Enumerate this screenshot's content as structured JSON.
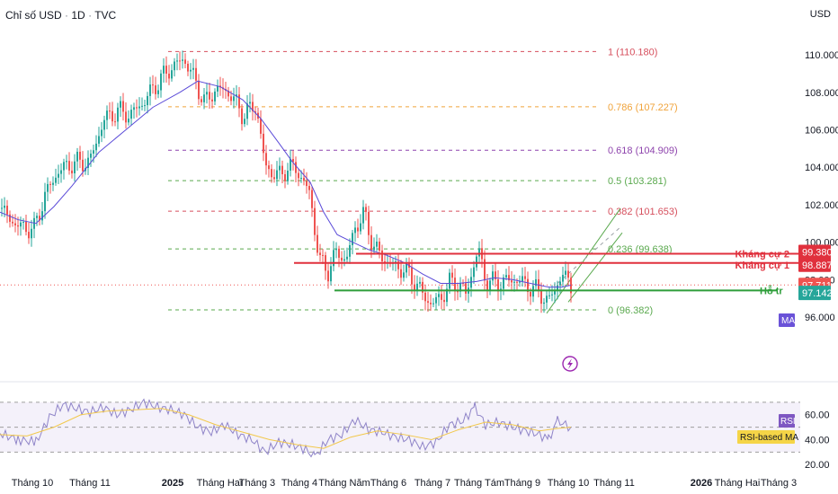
{
  "header": {
    "symbol": "Chỉ số USD",
    "interval": "1D",
    "source": "TVC",
    "currency": "USD"
  },
  "colors": {
    "up": "#26a69a",
    "down": "#ef5350",
    "ma": "#5b4bd8",
    "resistance": "#e0303d",
    "support": "#2e9e3a",
    "rsi": "#8f84c8",
    "rsi_ma": "#f2c84b"
  },
  "chart_data": {
    "type": "candlestick",
    "price_axis": {
      "range": [
        94.8,
        111.3
      ],
      "ticks": [
        "110.000",
        "108.000",
        "106.000",
        "104.000",
        "102.000",
        "100.000",
        "98.000",
        "96.000"
      ],
      "tick_values": [
        110,
        108,
        106,
        104,
        102,
        100,
        98,
        96
      ]
    },
    "time_axis": {
      "labels": [
        "Tháng 10",
        "Tháng 11",
        "2025",
        "Tháng Hai",
        "Tháng 3",
        "Tháng 4",
        "Tháng Năm",
        "Tháng 6",
        "Tháng 7",
        "Tháng Tám",
        "Tháng 9",
        "Tháng 10",
        "Tháng 11",
        "2026",
        "Tháng Hai",
        "Tháng 3"
      ],
      "bold": [
        false,
        false,
        true,
        false,
        false,
        false,
        false,
        false,
        false,
        false,
        false,
        false,
        false,
        true,
        false,
        false
      ]
    },
    "price_path": [
      [
        0,
        101.8
      ],
      [
        12,
        101.2
      ],
      [
        22,
        100.8
      ],
      [
        38,
        100.7
      ],
      [
        50,
        102.5
      ],
      [
        65,
        103.8
      ],
      [
        80,
        104.2
      ],
      [
        100,
        104.3
      ],
      [
        115,
        106.5
      ],
      [
        130,
        107.0
      ],
      [
        145,
        106.8
      ],
      [
        160,
        107.5
      ],
      [
        175,
        108.5
      ],
      [
        190,
        109.3
      ],
      [
        205,
        109.8
      ],
      [
        218,
        108.5
      ],
      [
        228,
        107.4
      ],
      [
        240,
        108.2
      ],
      [
        255,
        108.0
      ],
      [
        270,
        106.8
      ],
      [
        285,
        107.3
      ],
      [
        295,
        104.0
      ],
      [
        310,
        103.5
      ],
      [
        320,
        104.0
      ],
      [
        330,
        103.9
      ],
      [
        340,
        103.0
      ],
      [
        345,
        102.5
      ],
      [
        355,
        99.0
      ],
      [
        365,
        98.5
      ],
      [
        375,
        99.5
      ],
      [
        385,
        99.0
      ],
      [
        395,
        100.8
      ],
      [
        405,
        101.5
      ],
      [
        415,
        99.8
      ],
      [
        425,
        99.2
      ],
      [
        435,
        98.8
      ],
      [
        450,
        98.5
      ],
      [
        460,
        98.0
      ],
      [
        470,
        97.2
      ],
      [
        480,
        96.7
      ],
      [
        490,
        97.0
      ],
      [
        500,
        97.8
      ],
      [
        510,
        97.8
      ],
      [
        518,
        97.2
      ],
      [
        526,
        98.6
      ],
      [
        532,
        99.6
      ],
      [
        540,
        98.0
      ],
      [
        550,
        97.8
      ],
      [
        560,
        97.9
      ],
      [
        575,
        98.0
      ],
      [
        590,
        97.6
      ],
      [
        600,
        97.3
      ],
      [
        610,
        96.8
      ],
      [
        618,
        97.6
      ],
      [
        625,
        98.3
      ],
      [
        635,
        97.7
      ]
    ],
    "ma_path": [
      [
        0,
        101.6
      ],
      [
        20,
        101.2
      ],
      [
        40,
        101.0
      ],
      [
        60,
        101.9
      ],
      [
        80,
        103.0
      ],
      [
        110,
        104.8
      ],
      [
        140,
        106.0
      ],
      [
        170,
        107.2
      ],
      [
        200,
        108.0
      ],
      [
        220,
        108.6
      ],
      [
        245,
        108.3
      ],
      [
        270,
        107.6
      ],
      [
        290,
        106.6
      ],
      [
        310,
        105.3
      ],
      [
        325,
        104.3
      ],
      [
        345,
        103.2
      ],
      [
        360,
        101.6
      ],
      [
        375,
        100.4
      ],
      [
        392,
        100.0
      ],
      [
        410,
        99.6
      ],
      [
        430,
        99.3
      ],
      [
        450,
        98.9
      ],
      [
        470,
        98.3
      ],
      [
        490,
        97.8
      ],
      [
        510,
        97.8
      ],
      [
        530,
        97.9
      ],
      [
        550,
        98.1
      ],
      [
        570,
        98.0
      ],
      [
        590,
        97.8
      ],
      [
        610,
        97.6
      ],
      [
        625,
        97.6
      ],
      [
        635,
        97.7
      ]
    ],
    "fibonacci": [
      {
        "ratio": "1",
        "price": 110.18,
        "label": "1 (110.180)",
        "color": "#d64f5d"
      },
      {
        "ratio": "0.786",
        "price": 107.227,
        "label": "0.786 (107.227)",
        "color": "#f0a33a"
      },
      {
        "ratio": "0.618",
        "price": 104.909,
        "label": "0.618 (104.909)",
        "color": "#8e44ad"
      },
      {
        "ratio": "0.5",
        "price": 103.281,
        "label": "0.5 (103.281)",
        "color": "#5aa94e"
      },
      {
        "ratio": "0.382",
        "price": 101.653,
        "label": "0.382 (101.653)",
        "color": "#d64f5d"
      },
      {
        "ratio": "0.236",
        "price": 99.638,
        "label": "0.236 (99.638)",
        "color": "#5aa94e"
      },
      {
        "ratio": "0",
        "price": 96.382,
        "label": "0 (96.382)",
        "color": "#5aa94e"
      }
    ],
    "levels": {
      "resistance_2": {
        "label": "Kháng cự 2",
        "price": 99.38,
        "badge": "99.380"
      },
      "resistance_1": {
        "label": "Kháng cự 1",
        "price": 98.887,
        "badge": "98.887"
      },
      "support": {
        "label": "Hỗ tr",
        "price": 97.142,
        "badge": "97.142"
      },
      "last_price": {
        "price": 97.711,
        "badge": "97.711"
      },
      "ma_badge": "MA"
    },
    "rsi": {
      "axis_ticks": [
        "60.00",
        "40.00",
        "20.00"
      ],
      "tick_values": [
        60,
        40,
        20
      ],
      "range": [
        18,
        80
      ],
      "upper_band": 70,
      "lower_band": 30,
      "mid": 50,
      "rsi_label": "RSI",
      "rsi_ma_label": "RSI-based MA",
      "rsi_path": [
        [
          0,
          45
        ],
        [
          20,
          40
        ],
        [
          40,
          38
        ],
        [
          55,
          58
        ],
        [
          70,
          68
        ],
        [
          85,
          65
        ],
        [
          100,
          62
        ],
        [
          115,
          66
        ],
        [
          130,
          60
        ],
        [
          145,
          64
        ],
        [
          160,
          70
        ],
        [
          175,
          66
        ],
        [
          190,
          64
        ],
        [
          205,
          60
        ],
        [
          220,
          50
        ],
        [
          235,
          46
        ],
        [
          250,
          52
        ],
        [
          265,
          44
        ],
        [
          280,
          40
        ],
        [
          295,
          30
        ],
        [
          310,
          38
        ],
        [
          325,
          36
        ],
        [
          340,
          32
        ],
        [
          350,
          26
        ],
        [
          365,
          40
        ],
        [
          380,
          44
        ],
        [
          395,
          56
        ],
        [
          410,
          48
        ],
        [
          425,
          46
        ],
        [
          440,
          42
        ],
        [
          455,
          40
        ],
        [
          470,
          34
        ],
        [
          485,
          38
        ],
        [
          500,
          52
        ],
        [
          515,
          55
        ],
        [
          528,
          66
        ],
        [
          540,
          52
        ],
        [
          555,
          54
        ],
        [
          570,
          50
        ],
        [
          585,
          47
        ],
        [
          600,
          44
        ],
        [
          610,
          40
        ],
        [
          620,
          55
        ],
        [
          635,
          50
        ]
      ],
      "rsi_ma_path": [
        [
          0,
          44
        ],
        [
          30,
          43
        ],
        [
          60,
          50
        ],
        [
          90,
          60
        ],
        [
          120,
          63
        ],
        [
          150,
          64
        ],
        [
          180,
          65
        ],
        [
          210,
          60
        ],
        [
          240,
          52
        ],
        [
          270,
          46
        ],
        [
          300,
          40
        ],
        [
          330,
          36
        ],
        [
          360,
          33
        ],
        [
          390,
          42
        ],
        [
          420,
          47
        ],
        [
          450,
          44
        ],
        [
          480,
          40
        ],
        [
          510,
          48
        ],
        [
          540,
          54
        ],
        [
          570,
          52
        ],
        [
          600,
          47
        ],
        [
          620,
          49
        ],
        [
          635,
          50
        ]
      ]
    }
  }
}
